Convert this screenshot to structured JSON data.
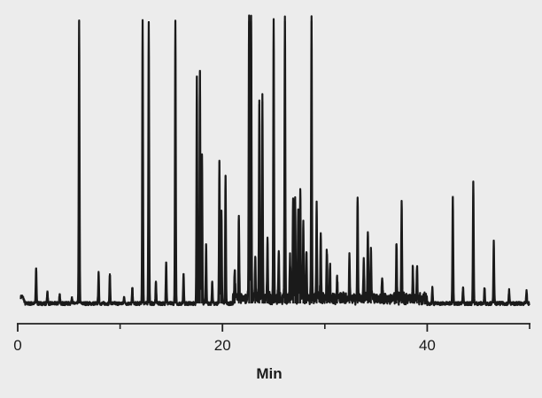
{
  "chart_data": {
    "type": "line",
    "title": "",
    "xlabel": "Min",
    "ylabel": "",
    "xlim": [
      0,
      50
    ],
    "ylim": [
      0,
      100
    ],
    "x_ticks_major": [
      0,
      20,
      40
    ],
    "x_ticks_minor": [
      10,
      30,
      50
    ],
    "grid": false,
    "legend": "none",
    "colors": {
      "background": "#ececec",
      "trace": "#1a1a1a",
      "axis": "#222222"
    },
    "baseline": 1.5,
    "series": [
      {
        "peaks": [
          [
            1.8,
            14
          ],
          [
            2.9,
            6
          ],
          [
            4.1,
            5
          ],
          [
            5.3,
            4
          ],
          [
            6.0,
            100
          ],
          [
            7.9,
            12
          ],
          [
            9.0,
            12
          ],
          [
            10.4,
            4
          ],
          [
            11.2,
            7
          ],
          [
            12.2,
            100
          ],
          [
            12.8,
            100
          ],
          [
            13.5,
            9
          ],
          [
            14.5,
            16
          ],
          [
            15.4,
            100
          ],
          [
            16.2,
            12
          ],
          [
            17.5,
            81
          ],
          [
            17.8,
            83
          ],
          [
            18.0,
            53
          ],
          [
            18.4,
            22
          ],
          [
            19.0,
            9
          ],
          [
            19.7,
            51
          ],
          [
            19.9,
            34
          ],
          [
            20.3,
            46
          ],
          [
            21.2,
            12
          ],
          [
            21.6,
            31
          ],
          [
            22.6,
            100
          ],
          [
            22.8,
            100
          ],
          [
            23.2,
            16
          ],
          [
            23.6,
            71
          ],
          [
            23.9,
            72
          ],
          [
            24.4,
            21
          ],
          [
            25.0,
            100
          ],
          [
            25.5,
            19
          ],
          [
            26.1,
            100
          ],
          [
            26.6,
            16
          ],
          [
            26.9,
            37
          ],
          [
            27.1,
            37
          ],
          [
            27.4,
            32
          ],
          [
            27.6,
            41
          ],
          [
            27.9,
            27
          ],
          [
            28.2,
            19
          ],
          [
            28.7,
            100
          ],
          [
            29.2,
            34
          ],
          [
            29.6,
            24
          ],
          [
            30.2,
            19
          ],
          [
            30.5,
            14
          ],
          [
            31.2,
            9
          ],
          [
            32.4,
            17
          ],
          [
            33.2,
            37
          ],
          [
            33.8,
            14
          ],
          [
            34.2,
            24
          ],
          [
            34.5,
            19
          ],
          [
            35.6,
            9
          ],
          [
            37.0,
            21
          ],
          [
            37.5,
            36
          ],
          [
            38.6,
            12
          ],
          [
            39.0,
            13
          ],
          [
            40.5,
            7
          ],
          [
            42.5,
            39
          ],
          [
            43.5,
            7
          ],
          [
            44.5,
            44
          ],
          [
            45.6,
            7
          ],
          [
            46.5,
            23
          ],
          [
            48.0,
            6
          ],
          [
            49.7,
            6
          ]
        ]
      }
    ]
  }
}
